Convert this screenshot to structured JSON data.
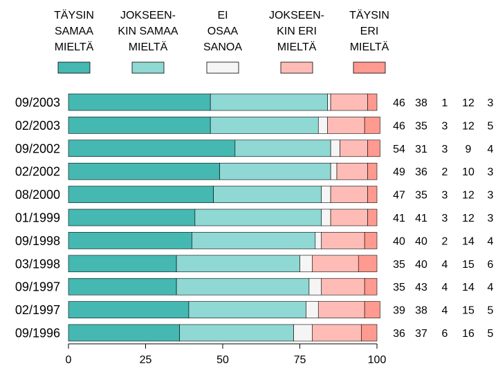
{
  "chart_data": {
    "type": "bar",
    "orientation": "horizontal",
    "stacked": true,
    "title": "",
    "xlabel": "",
    "ylabel": "",
    "xlim": [
      0,
      100
    ],
    "xticks": [
      "0",
      "25",
      "50",
      "75",
      "100"
    ],
    "legend_position": "top",
    "categories": [
      "09/2003",
      "02/2003",
      "09/2002",
      "02/2002",
      "08/2000",
      "01/1999",
      "09/1998",
      "03/1998",
      "09/1997",
      "02/1997",
      "09/1996"
    ],
    "series": [
      {
        "name": [
          "TÄYSIN",
          "SAMAA",
          "MIELTÄ"
        ],
        "color": "#45b8b2",
        "values": [
          46,
          46,
          54,
          49,
          47,
          41,
          40,
          35,
          35,
          39,
          36
        ]
      },
      {
        "name": [
          "JOKSEEN-",
          "KIN SAMAA",
          "MIELTÄ"
        ],
        "color": "#8fd8d3",
        "values": [
          38,
          35,
          31,
          36,
          35,
          41,
          40,
          40,
          43,
          38,
          37
        ]
      },
      {
        "name": [
          "EI",
          "OSAA",
          "SANOA"
        ],
        "color": "#f5f5f5",
        "values": [
          1,
          3,
          3,
          2,
          3,
          3,
          2,
          4,
          4,
          4,
          6
        ]
      },
      {
        "name": [
          "JOKSEEN-",
          "KIN ERI",
          "MIELTÄ"
        ],
        "color": "#ffbcb6",
        "values": [
          12,
          12,
          9,
          10,
          12,
          12,
          14,
          15,
          14,
          15,
          16
        ]
      },
      {
        "name": [
          "TÄYSIN",
          "ERI",
          "MIELTÄ"
        ],
        "color": "#ff9a90",
        "values": [
          3,
          5,
          4,
          3,
          3,
          3,
          4,
          6,
          4,
          5,
          5
        ]
      }
    ]
  }
}
